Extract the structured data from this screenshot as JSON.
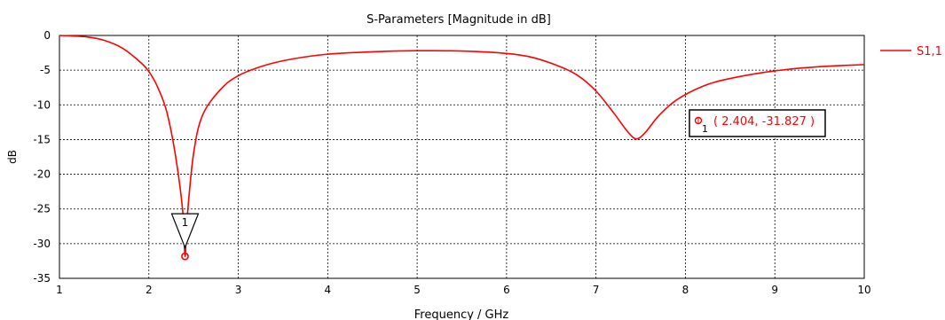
{
  "chart_data": {
    "type": "line",
    "title": "S-Parameters [Magnitude in dB]",
    "xlabel": "Frequency / GHz",
    "ylabel": "dB",
    "xlim": [
      1,
      10
    ],
    "ylim": [
      -35,
      0
    ],
    "xticks": [
      "1",
      "2",
      "3",
      "4",
      "5",
      "6",
      "7",
      "8",
      "9",
      "10"
    ],
    "yticks": [
      "0",
      "-5",
      "-10",
      "-15",
      "-20",
      "-25",
      "-30",
      "-35"
    ],
    "grid": true,
    "legend_position": "top-right",
    "colors": {
      "series": "#ff0000",
      "grid": "#000000",
      "marker_box": "#000000"
    },
    "series": [
      {
        "name": "S1,1",
        "x": [
          1.0,
          1.3,
          1.5,
          1.7,
          1.9,
          2.0,
          2.1,
          2.2,
          2.3,
          2.38,
          2.404,
          2.43,
          2.5,
          2.6,
          2.8,
          3.0,
          3.3,
          3.6,
          4.0,
          4.5,
          5.0,
          5.5,
          6.0,
          6.3,
          6.6,
          6.8,
          7.0,
          7.2,
          7.35,
          7.45,
          7.55,
          7.7,
          7.9,
          8.2,
          8.5,
          9.0,
          9.5,
          10.0
        ],
        "y": [
          0.0,
          -0.2,
          -0.7,
          -1.8,
          -3.8,
          -5.2,
          -7.5,
          -11.0,
          -17.5,
          -25.5,
          -31.827,
          -26.0,
          -17.0,
          -11.5,
          -7.8,
          -5.8,
          -4.3,
          -3.4,
          -2.7,
          -2.35,
          -2.2,
          -2.25,
          -2.6,
          -3.2,
          -4.5,
          -5.8,
          -8.0,
          -11.2,
          -13.8,
          -14.9,
          -14.0,
          -11.6,
          -9.3,
          -7.3,
          -6.2,
          -5.1,
          -4.5,
          -4.2
        ]
      }
    ],
    "marker": {
      "id": "1",
      "x": 2.404,
      "y": -31.827,
      "label": "( 2.404, -31.827 )"
    }
  }
}
